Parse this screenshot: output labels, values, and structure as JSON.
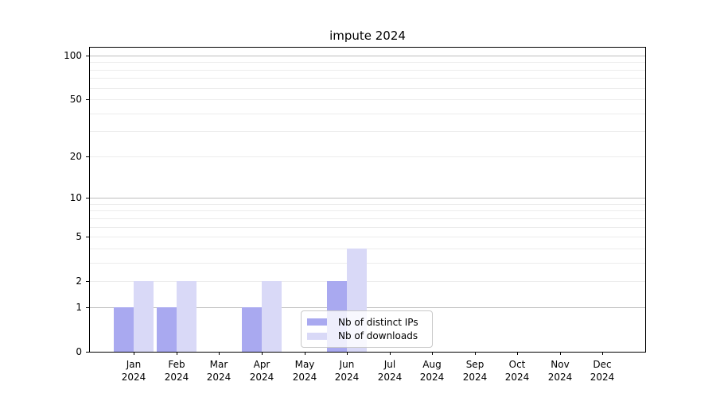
{
  "chart_data": {
    "type": "bar",
    "title": "impute 2024",
    "y_scale": "log10(1+value)",
    "ylim": [
      0,
      100
    ],
    "grid": true,
    "categories": [
      "Jan",
      "Feb",
      "Mar",
      "Apr",
      "May",
      "Jun",
      "Jul",
      "Aug",
      "Sep",
      "Oct",
      "Nov",
      "Dec"
    ],
    "x_sublabel": "2024",
    "series": [
      {
        "name": "Nb of distinct IPs",
        "color": "#a9a9f0",
        "values": [
          1,
          1,
          0,
          1,
          0,
          2,
          0,
          0,
          0,
          0,
          0,
          0
        ]
      },
      {
        "name": "Nb of downloads",
        "color": "#d9d9f7",
        "values": [
          2,
          2,
          0,
          2,
          0,
          4,
          0,
          0,
          0,
          0,
          0,
          0
        ]
      }
    ],
    "y_ticks": [
      0,
      1,
      2,
      5,
      10,
      20,
      50,
      100
    ],
    "gridlines_minor": [
      2,
      3,
      4,
      5,
      6,
      7,
      8,
      9,
      20,
      30,
      40,
      50,
      60,
      70,
      80,
      90
    ],
    "gridlines_major": [
      1,
      10,
      100
    ],
    "legend_position": "lower center"
  }
}
